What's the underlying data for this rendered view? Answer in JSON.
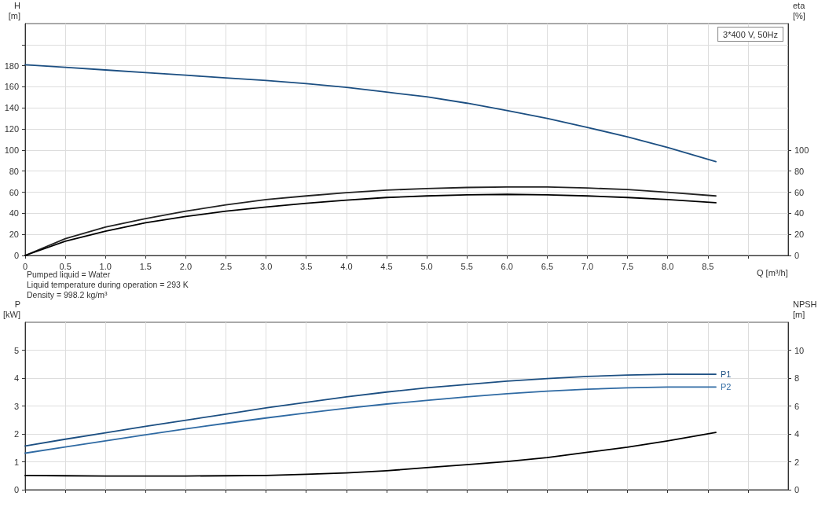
{
  "chart_data": [
    {
      "type": "line",
      "xlabel": "Q [m³/h]",
      "ylabel": "H [m]",
      "y2label": "eta [%]",
      "annotations": [
        "3*400 V, 50Hz",
        "Pumped liquid = Water",
        "Liquid temperature during operation = 293 K",
        "Density = 998.2 kg/m³"
      ],
      "x": [
        0,
        0.5,
        1.0,
        1.5,
        2.0,
        2.5,
        3.0,
        3.5,
        4.0,
        4.5,
        5.0,
        5.5,
        6.0,
        6.5,
        7.0,
        7.5,
        8.0,
        8.6
      ],
      "series": [
        {
          "color": "#1c4f82",
          "values": [
            181,
            178.5,
            176,
            173.5,
            171,
            168.5,
            166,
            163,
            159.5,
            155,
            150.5,
            144.5,
            137.5,
            130,
            121.5,
            112.5,
            102.5,
            89
          ]
        },
        {
          "color": "#222222",
          "axis": "y2",
          "values": [
            0,
            16,
            27,
            35,
            42,
            48,
            53,
            56.5,
            59.5,
            62,
            63.5,
            64.5,
            65,
            65,
            64,
            62.5,
            60,
            56.5
          ]
        },
        {
          "color": "#000000",
          "axis": "y2",
          "values": [
            0,
            13.5,
            23,
            31,
            37,
            42,
            46,
            49.5,
            52.5,
            55,
            56.5,
            57.5,
            58,
            57.5,
            56.5,
            55,
            53,
            50
          ]
        }
      ],
      "xlim": [
        0,
        9.5
      ],
      "xticks": [
        0,
        {
          "value": 0.5,
          "label": "0.5"
        },
        {
          "value": 1,
          "label": "1.0"
        },
        {
          "value": 1.5,
          "label": "1.5"
        },
        {
          "value": 2,
          "label": "2.0"
        },
        {
          "value": 2.5,
          "label": "2.5"
        },
        {
          "value": 3,
          "label": "3.0"
        },
        {
          "value": 3.5,
          "label": "3.5"
        },
        {
          "value": 4,
          "label": "4.0"
        },
        {
          "value": 4.5,
          "label": "4.5"
        },
        {
          "value": 5,
          "label": "5.0"
        },
        {
          "value": 5.5,
          "label": "5.5"
        },
        {
          "value": 6,
          "label": "6.0"
        },
        {
          "value": 6.5,
          "label": "6.5"
        },
        {
          "value": 7,
          "label": "7.0"
        },
        {
          "value": 7.5,
          "label": "7.5"
        },
        {
          "value": 8,
          "label": "8.0"
        },
        {
          "value": 8.5,
          "label": "8.5"
        },
        {
          "value": 9,
          "label": null
        }
      ],
      "ylim": [
        0,
        220
      ],
      "yticks": [
        0,
        20,
        40,
        60,
        80,
        100,
        120,
        140,
        160,
        180,
        {
          "value": 200,
          "label": null
        }
      ],
      "y2lim": [
        0,
        220
      ],
      "y2ticks": [
        0,
        20,
        40,
        60,
        80,
        100
      ],
      "grid": true,
      "legend": false,
      "marker": "none",
      "line_style": "solid"
    },
    {
      "type": "line",
      "ylabel": "P [kW]",
      "y2label": "NPSH [m]",
      "x": [
        0,
        0.5,
        1.0,
        1.5,
        2.0,
        2.5,
        3.0,
        3.5,
        4.0,
        4.5,
        5.0,
        5.5,
        6.0,
        6.5,
        7.0,
        7.5,
        8.0,
        8.6
      ],
      "series": [
        {
          "name": "P1",
          "color": "#1c4f82",
          "values": [
            1.57,
            1.81,
            2.04,
            2.27,
            2.49,
            2.71,
            2.93,
            3.13,
            3.33,
            3.5,
            3.65,
            3.77,
            3.89,
            3.98,
            4.06,
            4.11,
            4.14,
            4.14
          ]
        },
        {
          "name": "P2",
          "color": "#2f6aa3",
          "values": [
            1.31,
            1.53,
            1.75,
            1.97,
            2.18,
            2.38,
            2.57,
            2.75,
            2.92,
            3.07,
            3.2,
            3.33,
            3.44,
            3.53,
            3.6,
            3.65,
            3.68,
            3.68
          ]
        },
        {
          "color": "#000000",
          "axis": "y2",
          "values": [
            1.02,
            1.0,
            0.98,
            0.98,
            0.98,
            1.0,
            1.02,
            1.1,
            1.2,
            1.36,
            1.58,
            1.8,
            2.02,
            2.3,
            2.68,
            3.05,
            3.5,
            4.1
          ]
        }
      ],
      "xlim": [
        0,
        9.5
      ],
      "ylim": [
        0,
        6
      ],
      "yticks": [
        0,
        1,
        2,
        3,
        4,
        5
      ],
      "y2lim": [
        0,
        12
      ],
      "y2ticks": [
        0,
        2,
        4,
        6,
        8,
        10
      ],
      "xticks": [
        0,
        0.5,
        1,
        1.5,
        2,
        2.5,
        3,
        3.5,
        4,
        4.5,
        5,
        5.5,
        6,
        6.5,
        7,
        7.5,
        8,
        8.5,
        9
      ],
      "tick_labels": "y",
      "grid": true,
      "legend": false,
      "marker": "none",
      "line_style": "solid"
    }
  ]
}
